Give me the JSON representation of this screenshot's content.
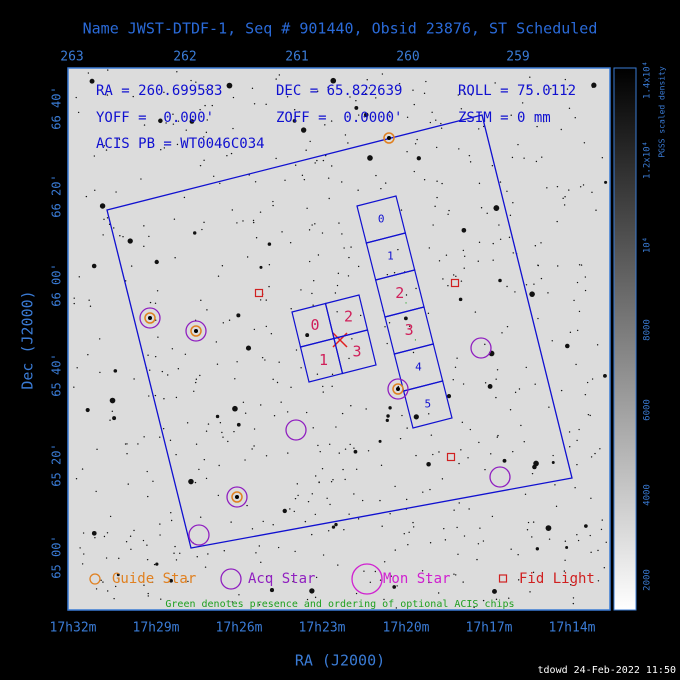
{
  "title": "Name JWST-DTDF-1, Seq # 901440, Obsid 23876, ST Scheduled",
  "info": {
    "ra": "RA = 260.699583",
    "dec": "DEC = 65.822639",
    "roll": "ROLL = 75.0112",
    "yoff": "YOFF =  0.000'",
    "zoff": "ZOFF =  0.0000'",
    "zsim": "ZSIM = 0 mm",
    "acis_pb": "ACIS PB = WT0046C034"
  },
  "top_axis": {
    "ticks": [
      "263",
      "262",
      "261",
      "260",
      "259"
    ]
  },
  "left_axis": {
    "label": "Dec (J2000)",
    "ticks": [
      "66 40'",
      "66 20'",
      "66 00'",
      "65 40'",
      "65 20'",
      "65 00'"
    ]
  },
  "bottom_axis": {
    "label": "RA (J2000)",
    "ticks": [
      "17h32m",
      "17h29m",
      "17h26m",
      "17h23m",
      "17h20m",
      "17h17m",
      "17h14m"
    ]
  },
  "colorbar": {
    "label": "PGSS scaled density",
    "ticks": [
      "2000",
      "4000",
      "6000",
      "8000",
      "10⁴",
      "1.2x10⁴",
      "1.4x10⁴"
    ]
  },
  "chips": {
    "i_array": [
      "0",
      "2",
      "1",
      "3"
    ],
    "s_array": [
      "0",
      "1",
      "2",
      "3",
      "4",
      "5"
    ]
  },
  "legend": [
    "Guide Star",
    "Acq Star",
    "Mon Star",
    "Fid Light"
  ],
  "note": "Green denotes presence and ordering of optional ACIS chips",
  "footer": "tdowd 24-Feb-2022 11:50"
}
